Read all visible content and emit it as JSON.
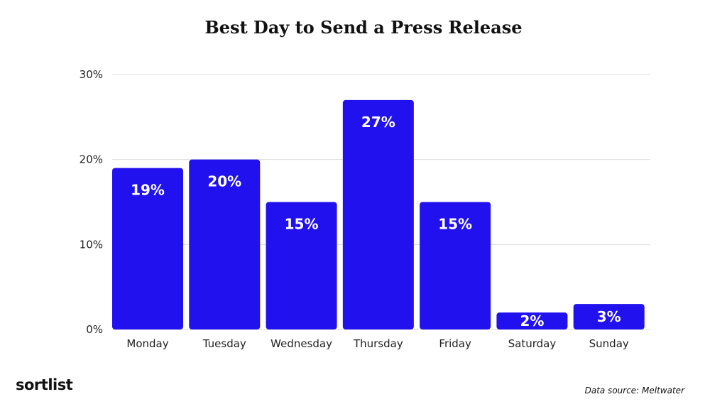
{
  "colors": {
    "bar": "#2111ee",
    "grid": "#dddddd",
    "label": "#ffffff"
  },
  "chart_data": {
    "type": "bar",
    "title": "Best Day to Send a Press Release",
    "categories": [
      "Monday",
      "Tuesday",
      "Wednesday",
      "Thursday",
      "Friday",
      "Saturday",
      "Sunday"
    ],
    "values": [
      19,
      20,
      15,
      27,
      15,
      2,
      3
    ],
    "data_labels": [
      "19%",
      "20%",
      "15%",
      "27%",
      "15%",
      "2%",
      "3%"
    ],
    "yticks": [
      0,
      10,
      20,
      30
    ],
    "ytick_labels": [
      "0%",
      "10%",
      "20%",
      "30%"
    ],
    "ylim": [
      0,
      30
    ],
    "grid": true
  },
  "footer": {
    "brand": "sortlist",
    "source": "Data source: Meltwater"
  }
}
